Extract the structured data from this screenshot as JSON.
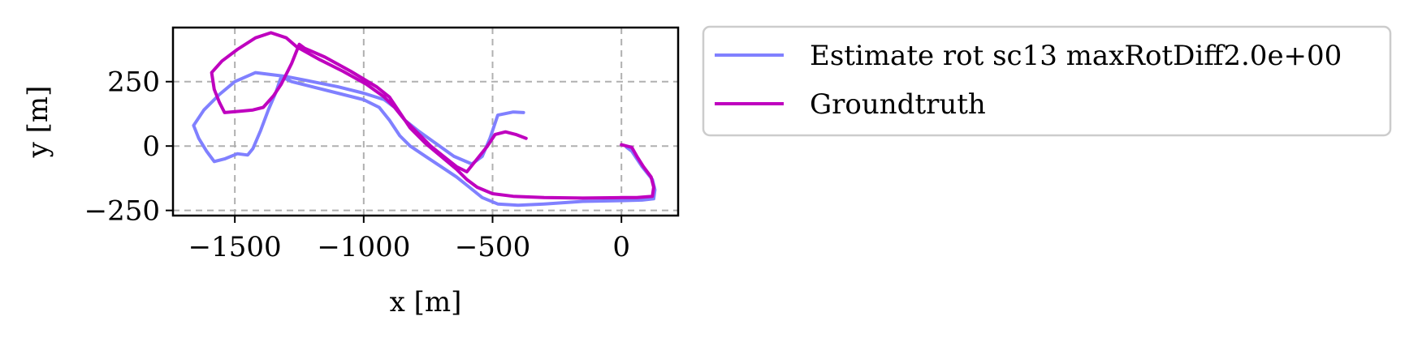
{
  "chart_data": {
    "type": "line",
    "title": "",
    "xlabel": "x [m]",
    "ylabel": "y [m]",
    "xlim": [
      -1740,
      220
    ],
    "ylim": [
      -270,
      460
    ],
    "xticks": [
      -1500,
      -1000,
      -500,
      0
    ],
    "xtick_labels": [
      "−1500",
      "−1000",
      "−500",
      "0"
    ],
    "yticks": [
      -250,
      0,
      250
    ],
    "ytick_labels": [
      "−250",
      "0",
      "250"
    ],
    "grid": true,
    "legend_position": "outside-right-top",
    "series": [
      {
        "name": "Estimate rot sc13 maxRotDiff2.0e+00",
        "color": "#8080ff",
        "points": [
          [
            -380,
            130
          ],
          [
            -420,
            132
          ],
          [
            -480,
            120
          ],
          [
            -510,
            30
          ],
          [
            -540,
            -40
          ],
          [
            -580,
            -70
          ],
          [
            -650,
            -40
          ],
          [
            -720,
            10
          ],
          [
            -790,
            60
          ],
          [
            -840,
            100
          ],
          [
            -880,
            150
          ],
          [
            -920,
            180
          ],
          [
            -1000,
            205
          ],
          [
            -1100,
            230
          ],
          [
            -1200,
            250
          ],
          [
            -1300,
            270
          ],
          [
            -1420,
            285
          ],
          [
            -1500,
            250
          ],
          [
            -1560,
            200
          ],
          [
            -1620,
            140
          ],
          [
            -1660,
            80
          ],
          [
            -1640,
            30
          ],
          [
            -1610,
            -20
          ],
          [
            -1580,
            -60
          ],
          [
            -1540,
            -50
          ],
          [
            -1490,
            -30
          ],
          [
            -1450,
            -35
          ],
          [
            -1430,
            -10
          ],
          [
            -1400,
            60
          ],
          [
            -1370,
            140
          ],
          [
            -1340,
            210
          ],
          [
            -1320,
            270
          ],
          [
            -1280,
            250
          ],
          [
            -1200,
            230
          ],
          [
            -1100,
            205
          ],
          [
            -1000,
            180
          ],
          [
            -940,
            150
          ],
          [
            -900,
            100
          ],
          [
            -860,
            40
          ],
          [
            -820,
            0
          ],
          [
            -760,
            -40
          ],
          [
            -700,
            -80
          ],
          [
            -640,
            -120
          ],
          [
            -590,
            -160
          ],
          [
            -540,
            -200
          ],
          [
            -480,
            -225
          ],
          [
            -400,
            -230
          ],
          [
            -300,
            -225
          ],
          [
            -150,
            -215
          ],
          [
            0,
            -212
          ],
          [
            80,
            -210
          ],
          [
            125,
            -205
          ],
          [
            130,
            -170
          ],
          [
            120,
            -130
          ],
          [
            80,
            -80
          ],
          [
            40,
            -20
          ],
          [
            20,
            -5
          ]
        ]
      },
      {
        "name": "Groundtruth",
        "color": "#bf00bf",
        "points": [
          [
            -370,
            30
          ],
          [
            -410,
            45
          ],
          [
            -450,
            55
          ],
          [
            -490,
            45
          ],
          [
            -520,
            0
          ],
          [
            -560,
            -50
          ],
          [
            -600,
            -100
          ],
          [
            -640,
            -80
          ],
          [
            -690,
            -40
          ],
          [
            -740,
            0
          ],
          [
            -790,
            50
          ],
          [
            -840,
            100
          ],
          [
            -880,
            150
          ],
          [
            -920,
            190
          ],
          [
            -990,
            240
          ],
          [
            -1080,
            290
          ],
          [
            -1170,
            335
          ],
          [
            -1260,
            385
          ],
          [
            -1300,
            420
          ],
          [
            -1360,
            440
          ],
          [
            -1420,
            420
          ],
          [
            -1490,
            375
          ],
          [
            -1550,
            330
          ],
          [
            -1590,
            285
          ],
          [
            -1580,
            220
          ],
          [
            -1560,
            170
          ],
          [
            -1540,
            130
          ],
          [
            -1480,
            135
          ],
          [
            -1430,
            140
          ],
          [
            -1390,
            150
          ],
          [
            -1350,
            195
          ],
          [
            -1320,
            240
          ],
          [
            -1280,
            320
          ],
          [
            -1250,
            395
          ],
          [
            -1230,
            380
          ],
          [
            -1150,
            345
          ],
          [
            -1050,
            290
          ],
          [
            -950,
            230
          ],
          [
            -900,
            190
          ],
          [
            -860,
            130
          ],
          [
            -820,
            70
          ],
          [
            -760,
            10
          ],
          [
            -700,
            -40
          ],
          [
            -640,
            -90
          ],
          [
            -600,
            -130
          ],
          [
            -560,
            -160
          ],
          [
            -500,
            -185
          ],
          [
            -420,
            -195
          ],
          [
            -300,
            -200
          ],
          [
            -150,
            -202
          ],
          [
            0,
            -200
          ],
          [
            60,
            -200
          ],
          [
            120,
            -195
          ],
          [
            125,
            -160
          ],
          [
            115,
            -120
          ],
          [
            85,
            -80
          ],
          [
            60,
            -40
          ],
          [
            40,
            -5
          ],
          [
            20,
            0
          ],
          [
            0,
            5
          ]
        ]
      }
    ]
  }
}
